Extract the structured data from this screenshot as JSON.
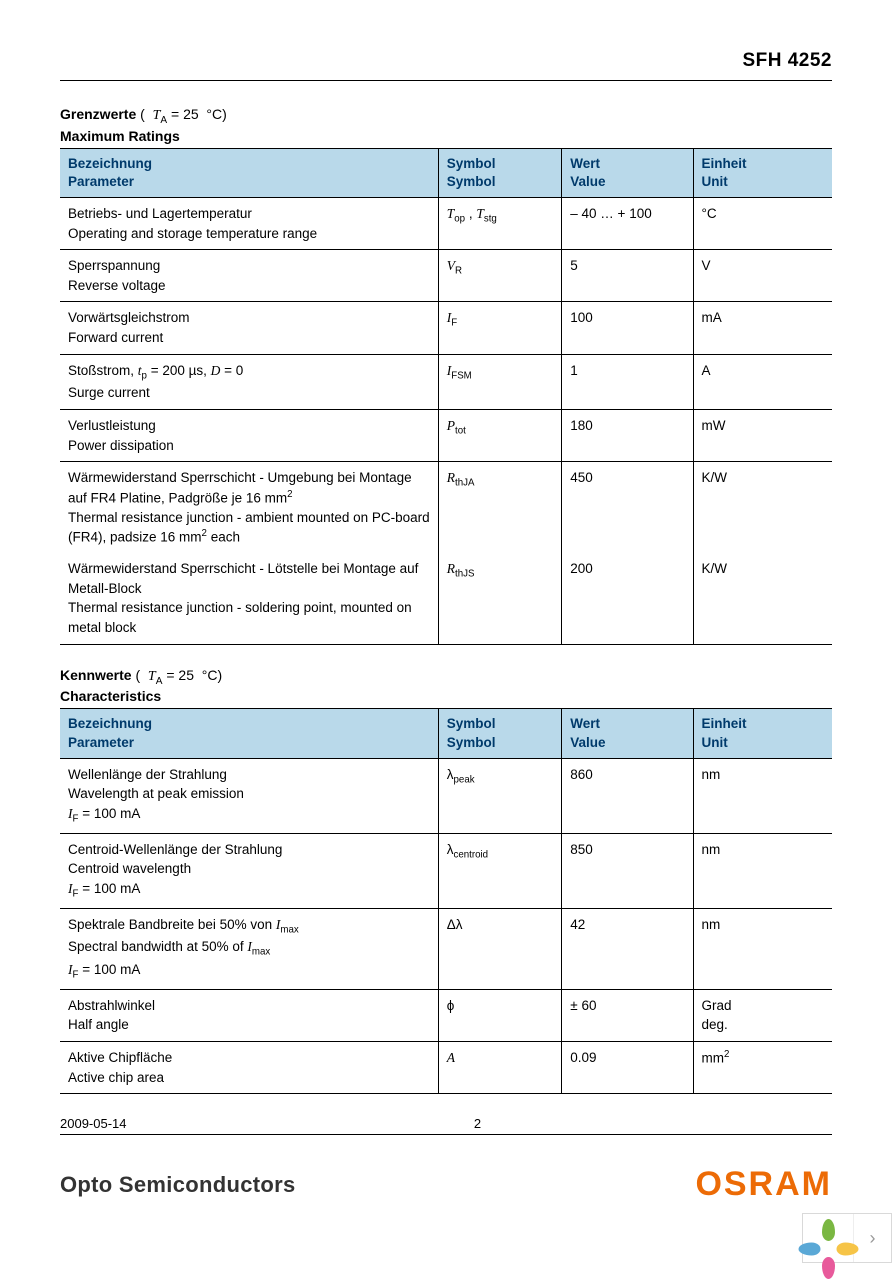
{
  "header": {
    "part_number": "SFH 4252"
  },
  "colors": {
    "table_header_bg": "#b9d9ea",
    "table_header_text": "#003a6b",
    "brand_orange": "#ec6b06"
  },
  "section1": {
    "title_bold": "Grenzwerte",
    "title_rest": "( T_A = 25 °C)",
    "subtitle": "Maximum Ratings",
    "columns": {
      "param_de": "Bezeichnung",
      "param_en": "Parameter",
      "sym_de": "Symbol",
      "sym_en": "Symbol",
      "val_de": "Wert",
      "val_en": "Value",
      "unit_de": "Einheit",
      "unit_en": "Unit"
    },
    "rows": [
      {
        "de": "Betriebs- und Lagertemperatur",
        "en": "Operating and storage temperature range",
        "sym": "T_op , T_stg",
        "val": "– 40 … + 100",
        "unit": "°C"
      },
      {
        "de": "Sperrspannung",
        "en": "Reverse voltage",
        "sym": "V_R",
        "val": "5",
        "unit": "V"
      },
      {
        "de": "Vorwärtsgleichstrom",
        "en": "Forward current",
        "sym": "I_F",
        "val": "100",
        "unit": "mA"
      },
      {
        "de": "Stoßstrom,  t_p = 200 µs, D = 0",
        "en": "Surge current",
        "sym": "I_FSM",
        "val": "1",
        "unit": "A"
      },
      {
        "de": "Verlustleistung",
        "en": "Power dissipation",
        "sym": "P_tot",
        "val": "180",
        "unit": "mW"
      },
      {
        "de": "Wärmewiderstand Sperrschicht - Umgebung bei Montage auf FR4 Platine, Padgröße je 16 mm²",
        "en": "Thermal resistance junction - ambient mounted on PC-board (FR4), padsize 16 mm² each",
        "sym": "R_thJA",
        "val": "450",
        "unit": "K/W",
        "no_bottom": true
      },
      {
        "de": "Wärmewiderstand Sperrschicht - Lötstelle bei Montage auf Metall-Block",
        "en": "Thermal resistance junction - soldering point, mounted on metal block",
        "sym": "R_thJS",
        "val": "200",
        "unit": "K/W"
      }
    ]
  },
  "section2": {
    "title_bold": "Kennwerte",
    "title_rest": "( T_A = 25 °C)",
    "subtitle": "Characteristics",
    "columns": {
      "param_de": "Bezeichnung",
      "param_en": "Parameter",
      "sym_de": "Symbol",
      "sym_en": "Symbol",
      "val_de": "Wert",
      "val_en": "Value",
      "unit_de": "Einheit",
      "unit_en": "Unit"
    },
    "rows": [
      {
        "de": "Wellenlänge der Strahlung",
        "en": "Wavelength at peak emission",
        "cond": "I_F = 100 mA",
        "sym": "λ_peak",
        "val": "860",
        "unit": "nm"
      },
      {
        "de": "Centroid-Wellenlänge der Strahlung",
        "en": "Centroid wavelength",
        "cond": "I_F = 100 mA",
        "sym": "λ_centroid",
        "val": "850",
        "unit": "nm"
      },
      {
        "de": "Spektrale Bandbreite bei 50% von I_max",
        "en": "Spectral bandwidth at 50% of I_max",
        "cond": "I_F = 100 mA",
        "sym": "Δλ",
        "val": "42",
        "unit": "nm"
      },
      {
        "de": "Abstrahlwinkel",
        "en": "Half angle",
        "sym": "ϕ",
        "val": "± 60",
        "unit_de": "Grad",
        "unit_en": "deg."
      },
      {
        "de": "Aktive Chipfläche",
        "en": "Active chip area",
        "sym": "A",
        "val": "0.09",
        "unit": "mm²"
      }
    ]
  },
  "footer": {
    "date": "2009-05-14",
    "page": "2"
  },
  "branding": {
    "left": "Opto Semiconductors",
    "right": "OSRAM"
  },
  "corner_colors": [
    "#7ab742",
    "#f6c447",
    "#e85a9b",
    "#5aa8d6"
  ]
}
